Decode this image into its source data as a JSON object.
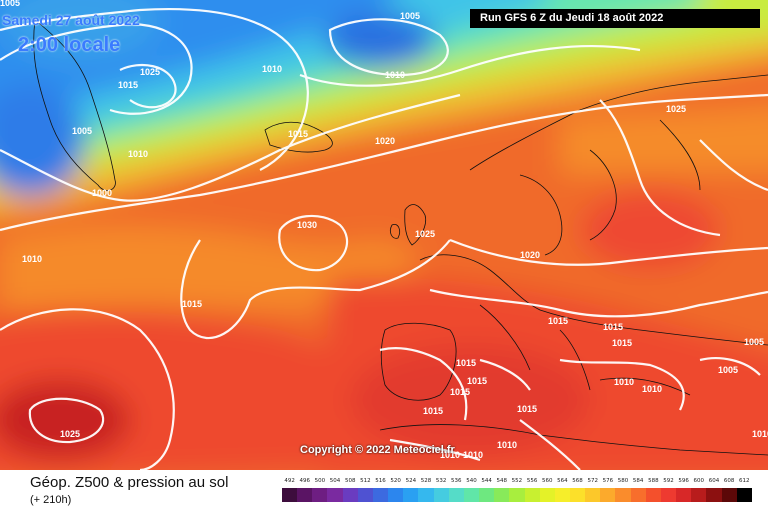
{
  "header": {
    "date": "Samedi 27 août 2022",
    "time": "2:00 locale",
    "run": "Run GFS 6 Z du Jeudi 18 août 2022"
  },
  "copyright": "Copyright © 2022 Meteociel.fr",
  "footer": {
    "title": "Géop. Z500 & pression au sol",
    "subtitle": "(+ 210h)"
  },
  "legend": {
    "values": [
      "492",
      "496",
      "500",
      "504",
      "508",
      "512",
      "516",
      "520",
      "524",
      "528",
      "532",
      "536",
      "540",
      "544",
      "548",
      "552",
      "556",
      "560",
      "564",
      "568",
      "572",
      "576",
      "580",
      "584",
      "588",
      "592",
      "596",
      "600",
      "604",
      "608",
      "612"
    ],
    "colors": [
      "#3d0d3d",
      "#5a1464",
      "#6e1e82",
      "#7a2aa0",
      "#6a3cc0",
      "#4f52d2",
      "#3c6ae0",
      "#2c86ee",
      "#2aa0f2",
      "#35b8ee",
      "#45cce0",
      "#55dcc8",
      "#60e6a8",
      "#6ee880",
      "#88ea5a",
      "#a8ee3e",
      "#c8f030",
      "#e4f228",
      "#f6ee2a",
      "#fce02a",
      "#fcc82a",
      "#fcaa2c",
      "#fa8c2c",
      "#f86e2c",
      "#f4502c",
      "#ee3a30",
      "#d82828",
      "#b81c1c",
      "#8c1010",
      "#5c0808",
      "#000000"
    ]
  },
  "map": {
    "isobars": [
      "1005",
      "1025",
      "1015",
      "1010",
      "1010",
      "1005",
      "1010",
      "1000",
      "1015",
      "1020",
      "1010",
      "1005",
      "1030",
      "1025",
      "1025",
      "1015",
      "1020",
      "1015",
      "1015",
      "1015",
      "1015",
      "1010",
      "1010",
      "1015",
      "1015",
      "1015",
      "1005",
      "1025",
      "1015",
      "1010",
      "1010",
      "1010",
      "1005",
      "1010"
    ]
  }
}
